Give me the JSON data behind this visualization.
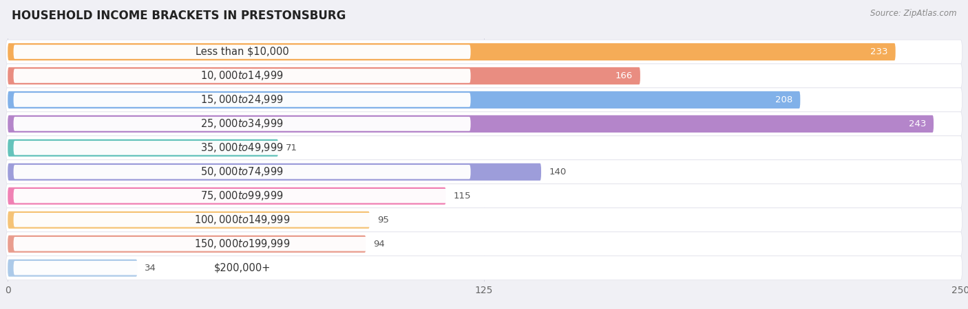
{
  "title": "HOUSEHOLD INCOME BRACKETS IN PRESTONSBURG",
  "source": "Source: ZipAtlas.com",
  "categories": [
    "Less than $10,000",
    "$10,000 to $14,999",
    "$15,000 to $24,999",
    "$25,000 to $34,999",
    "$35,000 to $49,999",
    "$50,000 to $74,999",
    "$75,000 to $99,999",
    "$100,000 to $149,999",
    "$150,000 to $199,999",
    "$200,000+"
  ],
  "values": [
    233,
    166,
    208,
    243,
    71,
    140,
    115,
    95,
    94,
    34
  ],
  "bar_colors": [
    "#f5a84e",
    "#e8877a",
    "#7aade8",
    "#b07ec8",
    "#5cc0b8",
    "#9898d8",
    "#f07ab0",
    "#f5c070",
    "#e89888",
    "#a8c8e8"
  ],
  "xlim": [
    0,
    250
  ],
  "xticks": [
    0,
    125,
    250
  ],
  "bg_color": "#f0f0f5",
  "row_bg_color": "#ffffff",
  "alt_row_bg_color": "#f5f5fa",
  "title_fontsize": 12,
  "label_fontsize": 10.5,
  "value_fontsize": 9.5,
  "white_text_threshold": 160
}
